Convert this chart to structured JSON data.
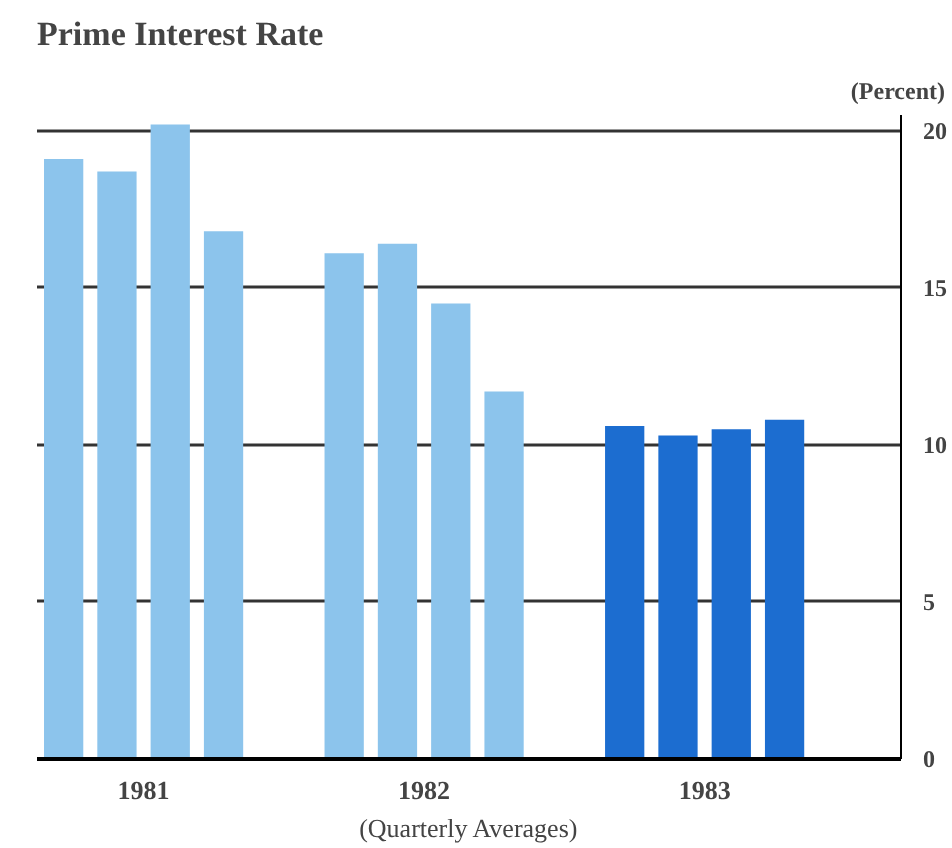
{
  "chart_data": {
    "type": "bar",
    "title": "Prime Interest Rate",
    "ylabel": "(Percent)",
    "xlabel": "(Quarterly Averages)",
    "categories": [
      "1981",
      "1982",
      "1983"
    ],
    "series": [
      {
        "colors": [
          "#8cc4ec",
          "#8cc4ec",
          "#1c6dd0"
        ],
        "values": [
          19.1,
          16.1,
          10.6
        ]
      },
      {
        "colors": [
          "#8cc4ec",
          "#8cc4ec",
          "#1c6dd0"
        ],
        "values": [
          18.7,
          16.4,
          10.3
        ]
      },
      {
        "colors": [
          "#8cc4ec",
          "#8cc4ec",
          "#1c6dd0"
        ],
        "values": [
          20.2,
          14.5,
          10.5
        ]
      },
      {
        "colors": [
          "#8cc4ec",
          "#8cc4ec",
          "#1c6dd0"
        ],
        "values": [
          16.8,
          11.7,
          10.8
        ]
      }
    ],
    "ylim": [
      0,
      20.5
    ],
    "yticks": [
      0,
      5,
      10,
      15,
      20
    ],
    "grid": "y"
  }
}
